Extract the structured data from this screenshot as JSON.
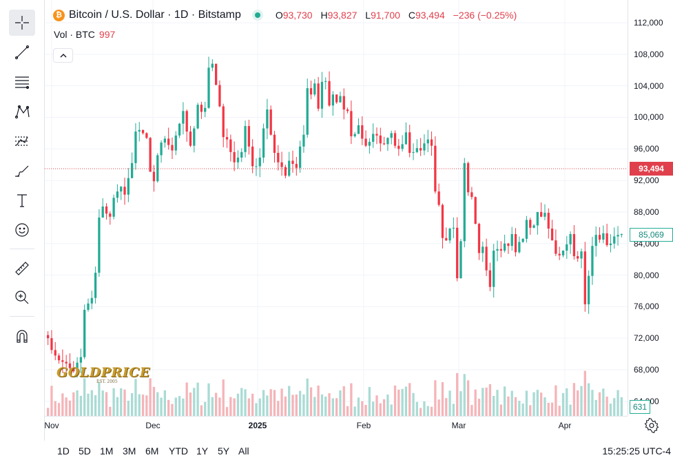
{
  "legend": {
    "badge": "₿",
    "symbol": "Bitcoin / U.S. Dollar · 1D · Bitstamp",
    "ohlc": {
      "o_label": "O",
      "o": "93,730",
      "h_label": "H",
      "h": "93,827",
      "l_label": "L",
      "l": "91,700",
      "c_label": "C",
      "c": "93,494",
      "change": "−236 (−0.25%)"
    }
  },
  "volume": {
    "label": "Vol · BTC",
    "value": "997"
  },
  "price_axis": {
    "ticks": [
      "112,000",
      "108,000",
      "104,000",
      "100,000",
      "96,000",
      "92,000",
      "88,000",
      "84,000",
      "80,000",
      "76,000",
      "72,000",
      "68,000",
      "64,000"
    ],
    "current_price_label": "93,494",
    "crosshair_price_label": "85,069",
    "volume_label": "631"
  },
  "time_axis": {
    "labels": [
      "Nov",
      "Dec",
      "2025",
      "Feb",
      "Mar",
      "Apr"
    ]
  },
  "ranges": [
    "1D",
    "5D",
    "1M",
    "3M",
    "6M",
    "YTD",
    "1Y",
    "5Y",
    "All"
  ],
  "clock": "15:25:25 UTC-4",
  "watermark": {
    "brand": "GOLDPRICE",
    "sub": "EST. 2005"
  },
  "colors": {
    "up": "#22ab94",
    "down": "#f23645",
    "vol_up": "#a9dbd4",
    "vol_down": "#f5b4b8",
    "current_line": "#e0404c"
  },
  "chart_data": {
    "type": "candlestick",
    "title": "Bitcoin / U.S. Dollar · 1D · Bitstamp",
    "ylim": [
      62500,
      113500
    ],
    "current_price": 93494,
    "closes": [
      72000,
      70500,
      69800,
      69200,
      69000,
      68800,
      68200,
      67800,
      68900,
      69600,
      75600,
      76400,
      77100,
      80300,
      87300,
      88700,
      87800,
      87400,
      89800,
      90600,
      91200,
      90200,
      92300,
      94200,
      98200,
      98400,
      98000,
      97400,
      93100,
      91900,
      95200,
      96800,
      97300,
      96500,
      95800,
      97700,
      99200,
      100800,
      98200,
      96400,
      98600,
      101600,
      100700,
      101200,
      106300,
      106800,
      104100,
      101400,
      97500,
      97200,
      95600,
      94300,
      94900,
      95600,
      98900,
      96300,
      93800,
      93800,
      94900,
      98600,
      101000,
      97800,
      95500,
      94300,
      93700,
      92600,
      94500,
      94100,
      93600,
      96300,
      97800,
      103700,
      102900,
      104300,
      101100,
      104500,
      104600,
      101500,
      102900,
      101900,
      102700,
      101000,
      100800,
      97600,
      97900,
      99000,
      97300,
      96400,
      96900,
      97900,
      97700,
      96700,
      96600,
      97400,
      98000,
      96400,
      96000,
      96600,
      98100,
      95500,
      95600,
      96100,
      95800,
      96700,
      97200,
      96400,
      90600,
      88900,
      84700,
      84400,
      85900,
      86000,
      79600,
      84300,
      94200,
      90500,
      89900,
      86500,
      82800,
      83600,
      80600,
      78500,
      83100,
      83300,
      83100,
      84000,
      83700,
      85200,
      82900,
      84200,
      84600,
      87000,
      86000,
      86300,
      88000,
      87400,
      87900,
      85900,
      84400,
      82700,
      82500,
      83100,
      83900,
      85200,
      82400,
      82100,
      83000,
      76300,
      79900,
      83700,
      85100,
      84500,
      85300,
      83800,
      84000,
      84900,
      85100,
      85200
    ]
  },
  "toolbar": {
    "tools": [
      "crosshair",
      "trend-line",
      "fib-retracement",
      "pattern",
      "prediction",
      "brush",
      "text",
      "emoji",
      "measure",
      "zoom-in",
      "magnet"
    ]
  }
}
